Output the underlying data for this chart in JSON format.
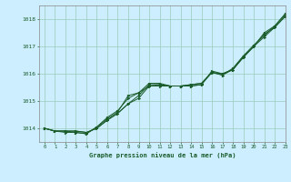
{
  "title": "Graphe pression niveau de la mer (hPa)",
  "background_color": "#cceeff",
  "grid_color": "#99ccbb",
  "line_color": "#1a5c2a",
  "xlim": [
    -0.5,
    23
  ],
  "ylim": [
    1013.5,
    1018.5
  ],
  "yticks": [
    1014,
    1015,
    1016,
    1017,
    1018
  ],
  "xticks": [
    0,
    1,
    2,
    3,
    4,
    5,
    6,
    7,
    8,
    9,
    10,
    11,
    12,
    13,
    14,
    15,
    16,
    17,
    18,
    19,
    20,
    21,
    22,
    23
  ],
  "series": [
    [
      1014.0,
      1013.9,
      1013.9,
      1013.9,
      1013.85,
      1014.0,
      1014.3,
      1014.55,
      1014.9,
      1015.1,
      1015.55,
      1015.55,
      1015.55,
      1015.55,
      1015.55,
      1015.6,
      1016.05,
      1015.95,
      1016.15,
      1016.6,
      1017.0,
      1017.45,
      1017.7,
      1018.1
    ],
    [
      1014.0,
      1013.9,
      1013.9,
      1013.9,
      1013.85,
      1014.0,
      1014.3,
      1014.55,
      1014.9,
      1015.2,
      1015.6,
      1015.6,
      1015.55,
      1015.55,
      1015.6,
      1015.65,
      1016.05,
      1016.0,
      1016.15,
      1016.65,
      1017.0,
      1017.5,
      1017.75,
      1018.2
    ],
    [
      1014.0,
      1013.9,
      1013.85,
      1013.85,
      1013.8,
      1014.05,
      1014.35,
      1014.6,
      1015.2,
      1015.3,
      1015.55,
      1015.6,
      1015.55,
      1015.55,
      1015.55,
      1015.6,
      1016.1,
      1016.0,
      1016.15,
      1016.6,
      1017.0,
      1017.35,
      1017.7,
      1018.1
    ],
    [
      1014.0,
      1013.9,
      1013.9,
      1013.85,
      1013.8,
      1014.05,
      1014.4,
      1014.65,
      1015.1,
      1015.3,
      1015.65,
      1015.65,
      1015.55,
      1015.55,
      1015.6,
      1015.65,
      1016.05,
      1015.95,
      1016.2,
      1016.65,
      1017.05,
      1017.4,
      1017.75,
      1018.15
    ]
  ]
}
